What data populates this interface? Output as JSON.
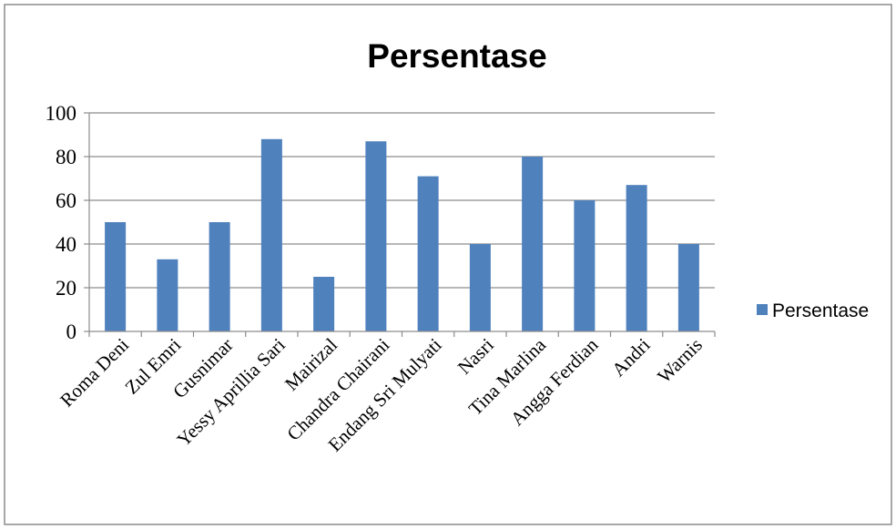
{
  "chart_data": {
    "type": "bar",
    "title": "Persentase",
    "categories": [
      "Roma Deni",
      "Zul Emri",
      "Gusnimar",
      "Yessy Aprillia Sari",
      "Mairizal",
      "Chandra Chairani",
      "Endang Sri Mulyati",
      "Nasri",
      "Tina Marlina",
      "Angga Ferdian",
      "Andri",
      "Warnis"
    ],
    "series": [
      {
        "name": "Persentase",
        "values": [
          50,
          33,
          50,
          88,
          25,
          87,
          71,
          40,
          80,
          60,
          67,
          40
        ],
        "color": "#4F81BD"
      }
    ],
    "yticks": [
      "0",
      "20",
      "40",
      "60",
      "80",
      "100"
    ],
    "ylim": [
      0,
      100
    ],
    "grid": true,
    "legend_position": "right"
  }
}
